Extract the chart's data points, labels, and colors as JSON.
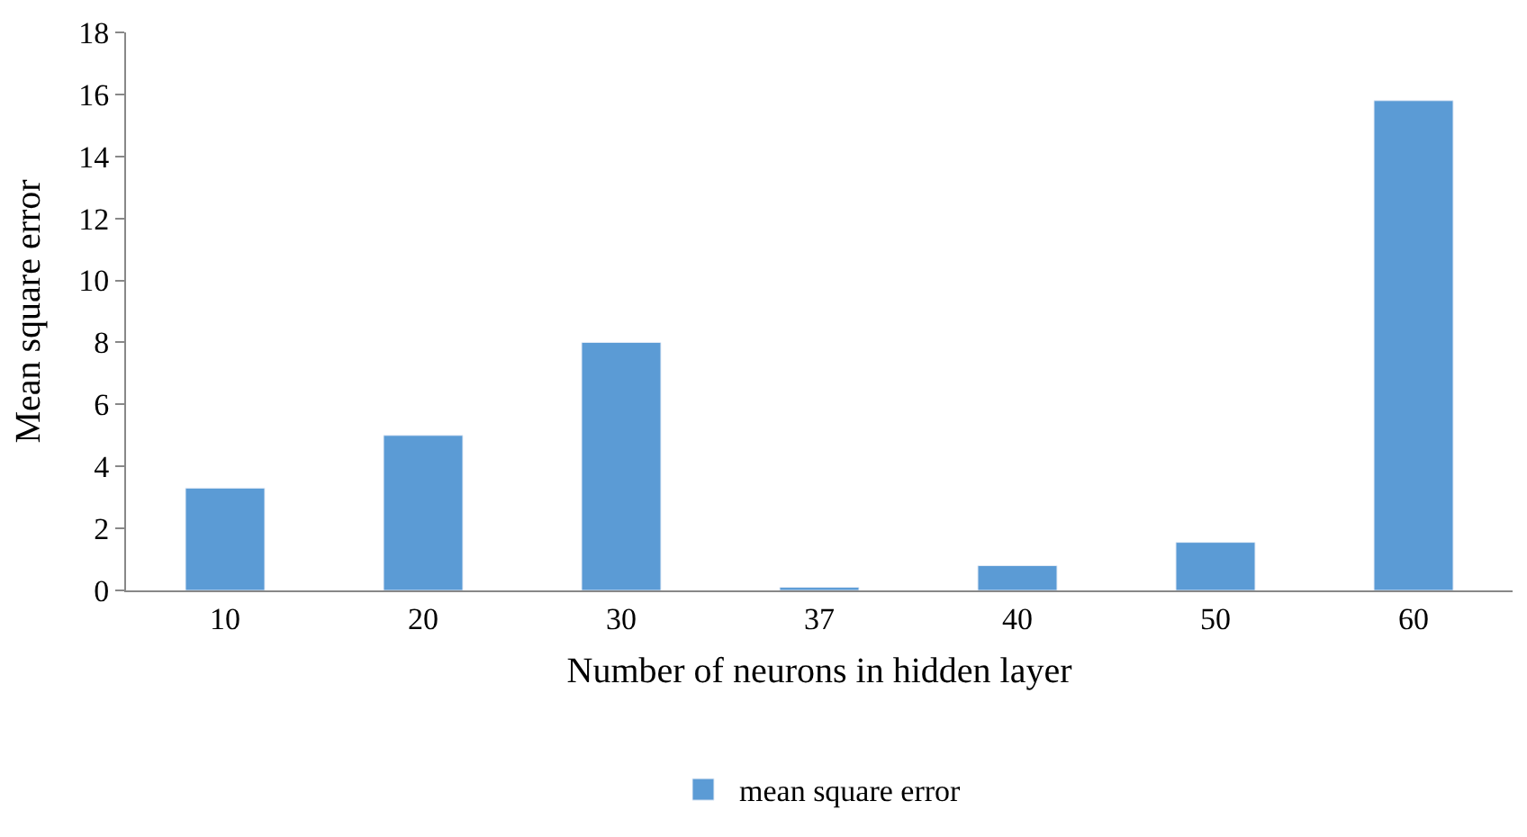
{
  "chart_data": {
    "type": "bar",
    "xlabel": "Number of neurons in hidden layer",
    "ylabel": "Mean square error",
    "categories": [
      "10",
      "20",
      "30",
      "37",
      "40",
      "50",
      "60"
    ],
    "series": [
      {
        "name": "mean square error",
        "color": "#5b9bd5",
        "values": [
          3.3,
          5.0,
          8.0,
          0.1,
          0.8,
          1.55,
          15.8
        ]
      }
    ],
    "ylim": [
      0,
      18
    ],
    "yticks": [
      0,
      2,
      4,
      6,
      8,
      10,
      12,
      14,
      16,
      18
    ],
    "grid": false,
    "legend": "bottom"
  }
}
